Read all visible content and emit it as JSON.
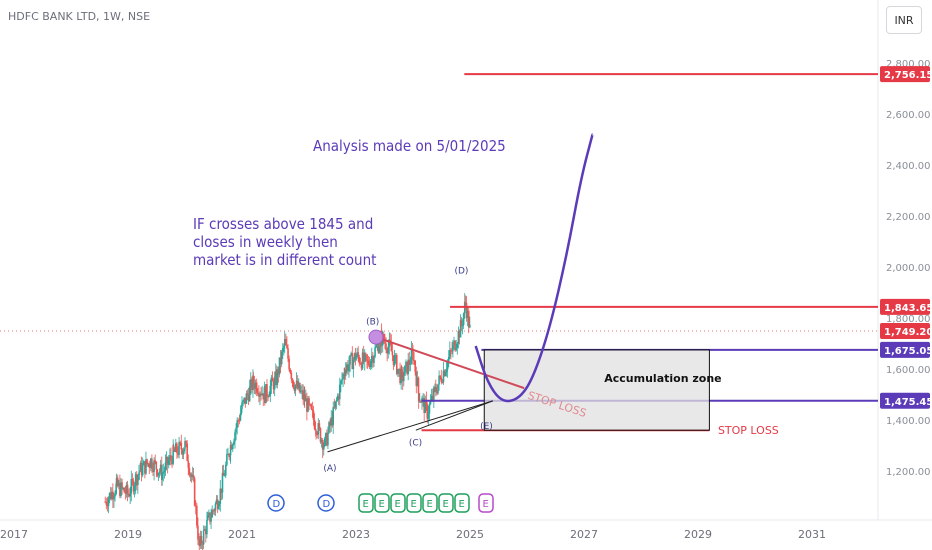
{
  "header": {
    "title": "HDFC BANK LTD, 1W, NSE",
    "currency": "INR"
  },
  "colors": {
    "red": "#e53946",
    "purple": "#5b3bb8",
    "zone": "#e0e0e0",
    "up": "#26a69a",
    "down": "#ef5350"
  },
  "chart_data": {
    "type": "candlestick",
    "title": "HDFC BANK LTD, 1W, NSE",
    "x_ticks": [
      "2017",
      "2019",
      "2021",
      "2023",
      "2025",
      "2027",
      "2029",
      "2031"
    ],
    "y_ticks": [
      "1,200.00",
      "1,400.00",
      "1,600.00",
      "1,800.00",
      "2,000.00",
      "2,200.00",
      "2,400.00",
      "2,600.00",
      "2,800.00"
    ],
    "ylim": [
      1090,
      2830
    ],
    "xlim": [
      2017.0,
      2032.6
    ],
    "price_series": [
      [
        2018.6,
        1080
      ],
      [
        2018.8,
        1140
      ],
      [
        2019.0,
        1110
      ],
      [
        2019.2,
        1200
      ],
      [
        2019.4,
        1240
      ],
      [
        2019.6,
        1190
      ],
      [
        2019.8,
        1270
      ],
      [
        2020.0,
        1300
      ],
      [
        2020.15,
        1140
      ],
      [
        2020.25,
        900
      ],
      [
        2020.4,
        1000
      ],
      [
        2020.6,
        1100
      ],
      [
        2020.8,
        1300
      ],
      [
        2021.0,
        1450
      ],
      [
        2021.2,
        1550
      ],
      [
        2021.4,
        1500
      ],
      [
        2021.6,
        1560
      ],
      [
        2021.75,
        1700
      ],
      [
        2021.9,
        1550
      ],
      [
        2022.1,
        1480
      ],
      [
        2022.3,
        1380
      ],
      [
        2022.45,
        1300
      ],
      [
        2022.6,
        1420
      ],
      [
        2022.8,
        1600
      ],
      [
        2023.0,
        1650
      ],
      [
        2023.2,
        1620
      ],
      [
        2023.45,
        1720
      ],
      [
        2023.6,
        1680
      ],
      [
        2023.8,
        1560
      ],
      [
        2024.0,
        1660
      ],
      [
        2024.1,
        1500
      ],
      [
        2024.25,
        1430
      ],
      [
        2024.4,
        1520
      ],
      [
        2024.55,
        1600
      ],
      [
        2024.7,
        1680
      ],
      [
        2024.85,
        1770
      ],
      [
        2024.92,
        1860
      ],
      [
        2025.0,
        1750
      ]
    ],
    "last_price": "1,749.20",
    "levels": [
      {
        "value": 2756.15,
        "label": "2,756.15",
        "color": "#e53946",
        "x_start": 2024.9
      },
      {
        "value": 1843.65,
        "label": "1,843.65",
        "color": "#e53946",
        "x_start": 2024.65
      },
      {
        "value": 1675.05,
        "label": "1,675.05",
        "color": "#5b3bb8",
        "x_start": 2025.2
      },
      {
        "value": 1475.45,
        "label": "1,475.45",
        "color": "#5b3bb8",
        "x_start": 2024.15
      },
      {
        "value": 1360,
        "label": "",
        "color": "#e53946",
        "x_start": 2024.15,
        "x_end": 2029.2
      }
    ],
    "annotations": [
      {
        "text": "Analysis made on 5/01/2025"
      },
      {
        "lines": [
          "IF crosses above 1845 and",
          " closes in weekly then",
          "market is in different count"
        ]
      },
      {
        "text": "Accumulation zone"
      },
      {
        "text": "STOP LOSS"
      },
      {
        "text": "STOP LOSS"
      }
    ],
    "wave_labels": [
      "(A)",
      "(B)",
      "(C)",
      "(D)",
      "(E)"
    ],
    "badges": [
      "D",
      "D",
      "E",
      "E",
      "E",
      "E",
      "E",
      "E",
      "E",
      "E"
    ],
    "zone": {
      "x0": 2025.25,
      "x1": 2029.2,
      "y0": 1360,
      "y1": 1675
    },
    "projection": [
      [
        2025.1,
        1690
      ],
      [
        2025.3,
        1550
      ],
      [
        2025.55,
        1470
      ],
      [
        2025.85,
        1480
      ],
      [
        2026.1,
        1560
      ],
      [
        2026.4,
        1760
      ],
      [
        2026.7,
        2050
      ],
      [
        2026.95,
        2350
      ],
      [
        2027.15,
        2520
      ]
    ]
  }
}
